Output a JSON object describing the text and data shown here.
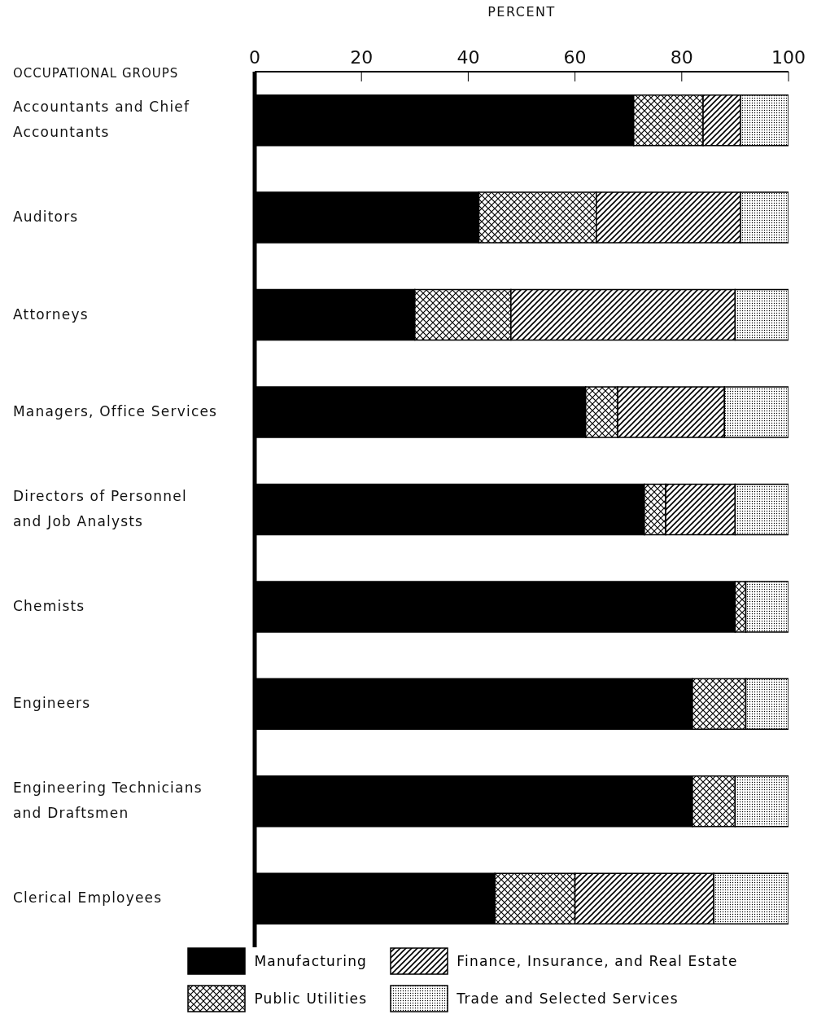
{
  "chart_data": {
    "type": "bar",
    "orientation": "horizontal",
    "stacked": true,
    "xlabel": "PERCENT",
    "ylabel": "OCCUPATIONAL GROUPS",
    "categories": [
      "Accountants and Chief Accountants",
      "Auditors",
      "Attorneys",
      "Managers, Office Services",
      "Directors of Personnel and Job Analysts",
      "Chemists",
      "Engineers",
      "Engineering Technicians and Draftsmen",
      "Clerical Employees"
    ],
    "series": [
      {
        "name": "Manufacturing",
        "color": "#000000",
        "values": [
          71,
          42,
          30,
          62,
          73,
          90,
          82,
          82,
          45
        ]
      },
      {
        "name": "Public Utilities",
        "color": "#000000",
        "values": [
          13,
          22,
          18,
          6,
          4,
          2,
          10,
          8,
          15
        ]
      },
      {
        "name": "Finance, Insurance, and Real Estate",
        "color": "#000000",
        "values": [
          7,
          27,
          42,
          20,
          13,
          0,
          0,
          0,
          26
        ]
      },
      {
        "name": "Trade and Selected Services",
        "color": "#000000",
        "values": [
          9,
          9,
          10,
          12,
          10,
          8,
          8,
          10,
          14
        ]
      }
    ],
    "xlim": [
      0,
      100
    ],
    "xticks": [
      0,
      20,
      40,
      60,
      80,
      100
    ],
    "legend": "bottom"
  }
}
